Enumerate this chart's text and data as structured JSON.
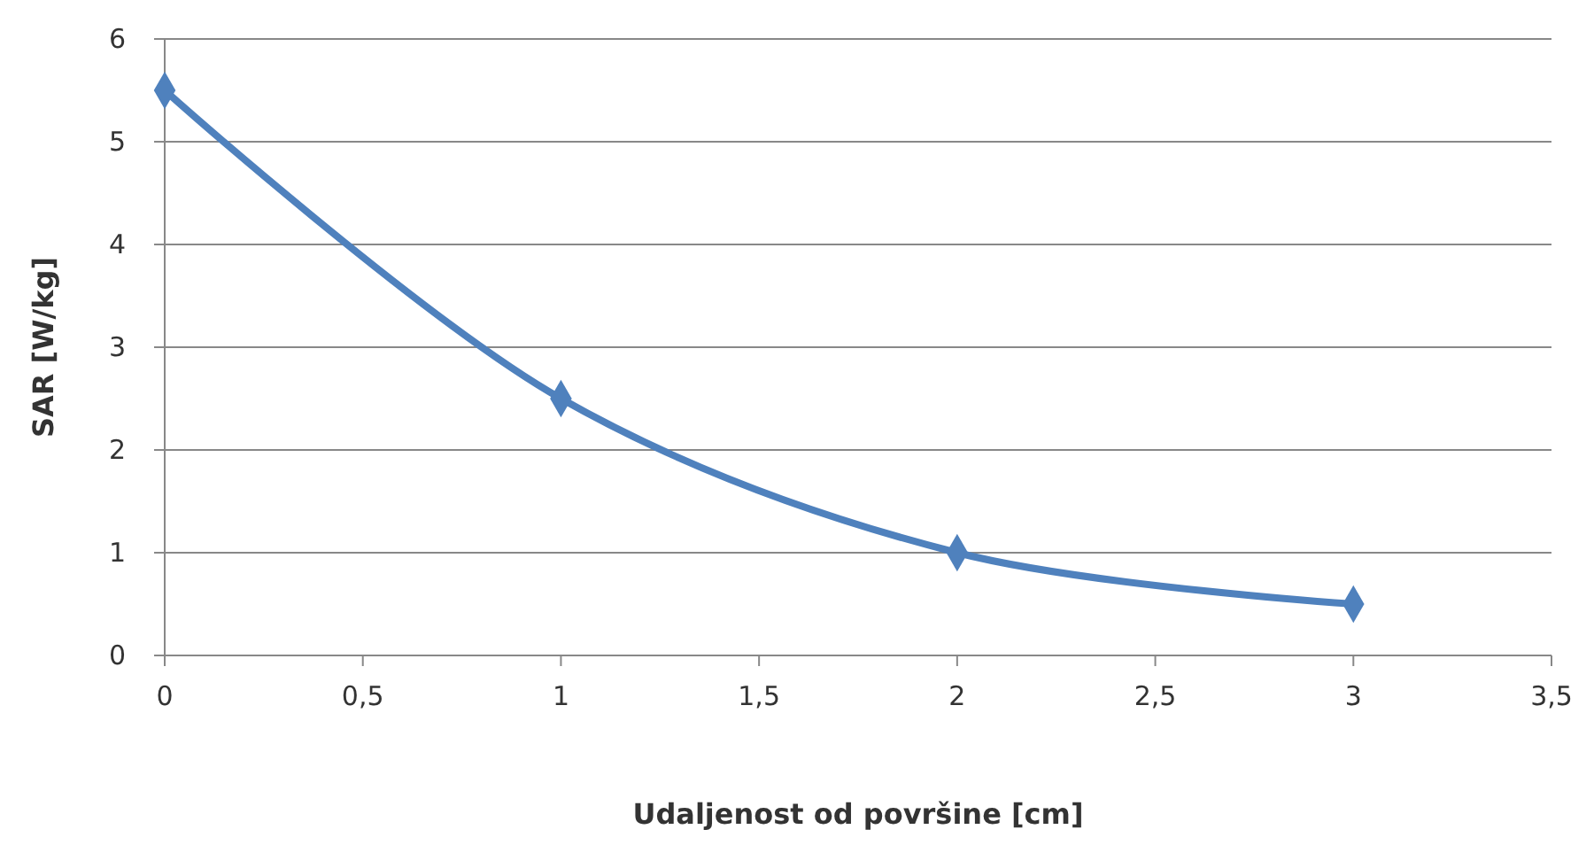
{
  "chart_data": {
    "type": "line",
    "xlabel": "Udaljenost od površine [cm]",
    "ylabel": "SAR [W/kg]",
    "x": [
      0,
      1,
      2,
      3
    ],
    "series": [
      {
        "color": "#4f81bd",
        "values": [
          5.5,
          2.5,
          1,
          0.5
        ]
      }
    ],
    "xlim": [
      0,
      3.5
    ],
    "ylim": [
      0,
      6
    ],
    "xticks": [
      0,
      {
        "value": 0.5,
        "label": "0,5"
      },
      1,
      {
        "value": 1.5,
        "label": "1,5"
      },
      2,
      {
        "value": 2.5,
        "label": "2,5"
      },
      3,
      {
        "value": 3.5,
        "label": "3,5"
      }
    ],
    "yticks": [
      0,
      1,
      2,
      3,
      4,
      5,
      6
    ],
    "grid": "y",
    "marker": "diamond",
    "line_style": "solid"
  }
}
